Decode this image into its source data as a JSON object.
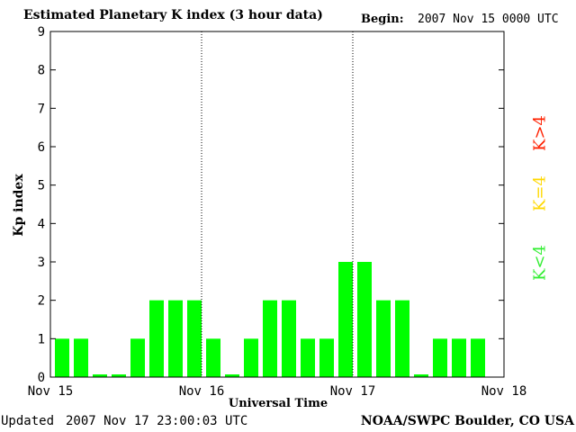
{
  "header": {
    "title": "Estimated Planetary K index (3 hour data)",
    "begin_label": "Begin:",
    "begin_value": "2007 Nov 15 0000 UTC"
  },
  "footer": {
    "updated_label": "Updated",
    "updated_value": "2007 Nov 17 23:00:03 UTC",
    "source": "NOAA/SWPC Boulder, CO USA"
  },
  "legend": {
    "high": "K>4",
    "equal": "K=4",
    "low": "K<4"
  },
  "colors": {
    "low": "#00ff00",
    "equal": "#ffd800",
    "high": "#ff2000"
  },
  "chart_data": {
    "type": "bar",
    "ylabel": "Kp index",
    "xlabel": "Universal Time",
    "ylim": [
      0,
      9
    ],
    "yticks": [
      0,
      1,
      2,
      3,
      4,
      5,
      6,
      7,
      8,
      9
    ],
    "xlim_days": [
      0,
      3
    ],
    "x_tick_labels": [
      "Nov 15",
      "Nov 16",
      "Nov 17",
      "Nov 18"
    ],
    "values": [
      1,
      1,
      0,
      0,
      1,
      2,
      2,
      2,
      1,
      0,
      1,
      2,
      2,
      1,
      1,
      3,
      3,
      2,
      2,
      0,
      1,
      1,
      1
    ]
  }
}
